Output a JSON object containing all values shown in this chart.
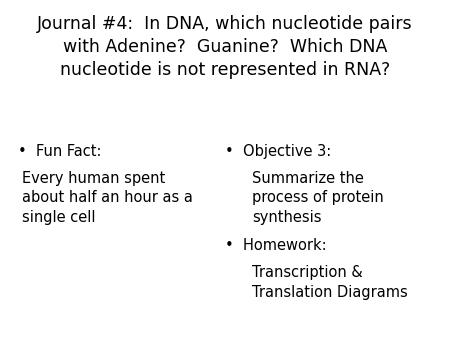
{
  "background_color": "#ffffff",
  "title_text": "Journal #4:  In DNA, which nucleotide pairs\nwith Adenine?  Guanine?  Which DNA\nnucleotide is not represented in RNA?",
  "title_fontsize": 12.5,
  "body_fontsize": 10.5,
  "bullet_char": "•",
  "left_bullet": "Fun Fact:",
  "left_body": "Every human spent\nabout half an hour as a\nsingle cell",
  "right_bullet1_line1": "Objective 3:",
  "right_bullet1_body": "Summarize the\nprocess of protein\nsynthesis",
  "right_bullet2_line1": "Homework:",
  "right_bullet2_body": "Transcription &\nTranslation Diagrams"
}
